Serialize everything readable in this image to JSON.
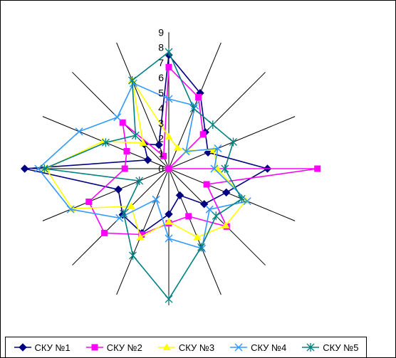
{
  "chart_data": {
    "type": "radar",
    "title": "",
    "axes_count": 16,
    "r_ticks": [
      "0",
      "1",
      "2",
      "3",
      "4",
      "5",
      "6",
      "7",
      "8",
      "9"
    ],
    "rlim": [
      0,
      9
    ],
    "grid": "spokes only",
    "legend": "bottom",
    "series": [
      {
        "name": "СКУ №1",
        "color": "#000080",
        "marker": "diamond",
        "values": [
          7.5,
          5.4,
          3.4,
          2.8,
          6.5,
          4.1,
          3.3,
          1.9,
          3.0,
          4.6,
          4.3,
          3.6,
          9.5,
          1.5,
          2.3,
          1.7
        ]
      },
      {
        "name": "СКУ №2",
        "color": "#ff00ff",
        "marker": "square",
        "values": [
          6.7,
          5.1,
          3.2,
          0.0,
          9.8,
          2.7,
          5.4,
          3.4,
          3.6,
          4.7,
          6.0,
          5.7,
          2.9,
          3.0,
          4.3,
          0.9
        ]
      },
      {
        "name": "СКУ №3",
        "color": "#ffff00",
        "marker": "triangle",
        "values": [
          2.1,
          1.5,
          1.7,
          3.2,
          3.2,
          5.5,
          5.3,
          4.9,
          3.5,
          4.9,
          3.5,
          6.9,
          8.1,
          4.7,
          2.4,
          6.3
        ]
      },
      {
        "name": "СКУ №4",
        "color": "#3399ff",
        "marker": "x",
        "values": [
          4.6,
          4.5,
          1.6,
          3.5,
          3.0,
          5.6,
          3.8,
          5.7,
          4.6,
          2.2,
          4.6,
          7.0,
          8.6,
          6.4,
          4.8,
          6.1
        ]
      },
      {
        "name": "СКУ №5",
        "color": "#008080",
        "marker": "asterisk",
        "values": [
          7.7,
          4.3,
          4.1,
          4.6,
          3.7,
          5.2,
          4.4,
          5.6,
          8.6,
          6.2,
          4.2,
          2.1,
          8.2,
          4.5,
          3.1,
          6.3
        ]
      }
    ]
  }
}
